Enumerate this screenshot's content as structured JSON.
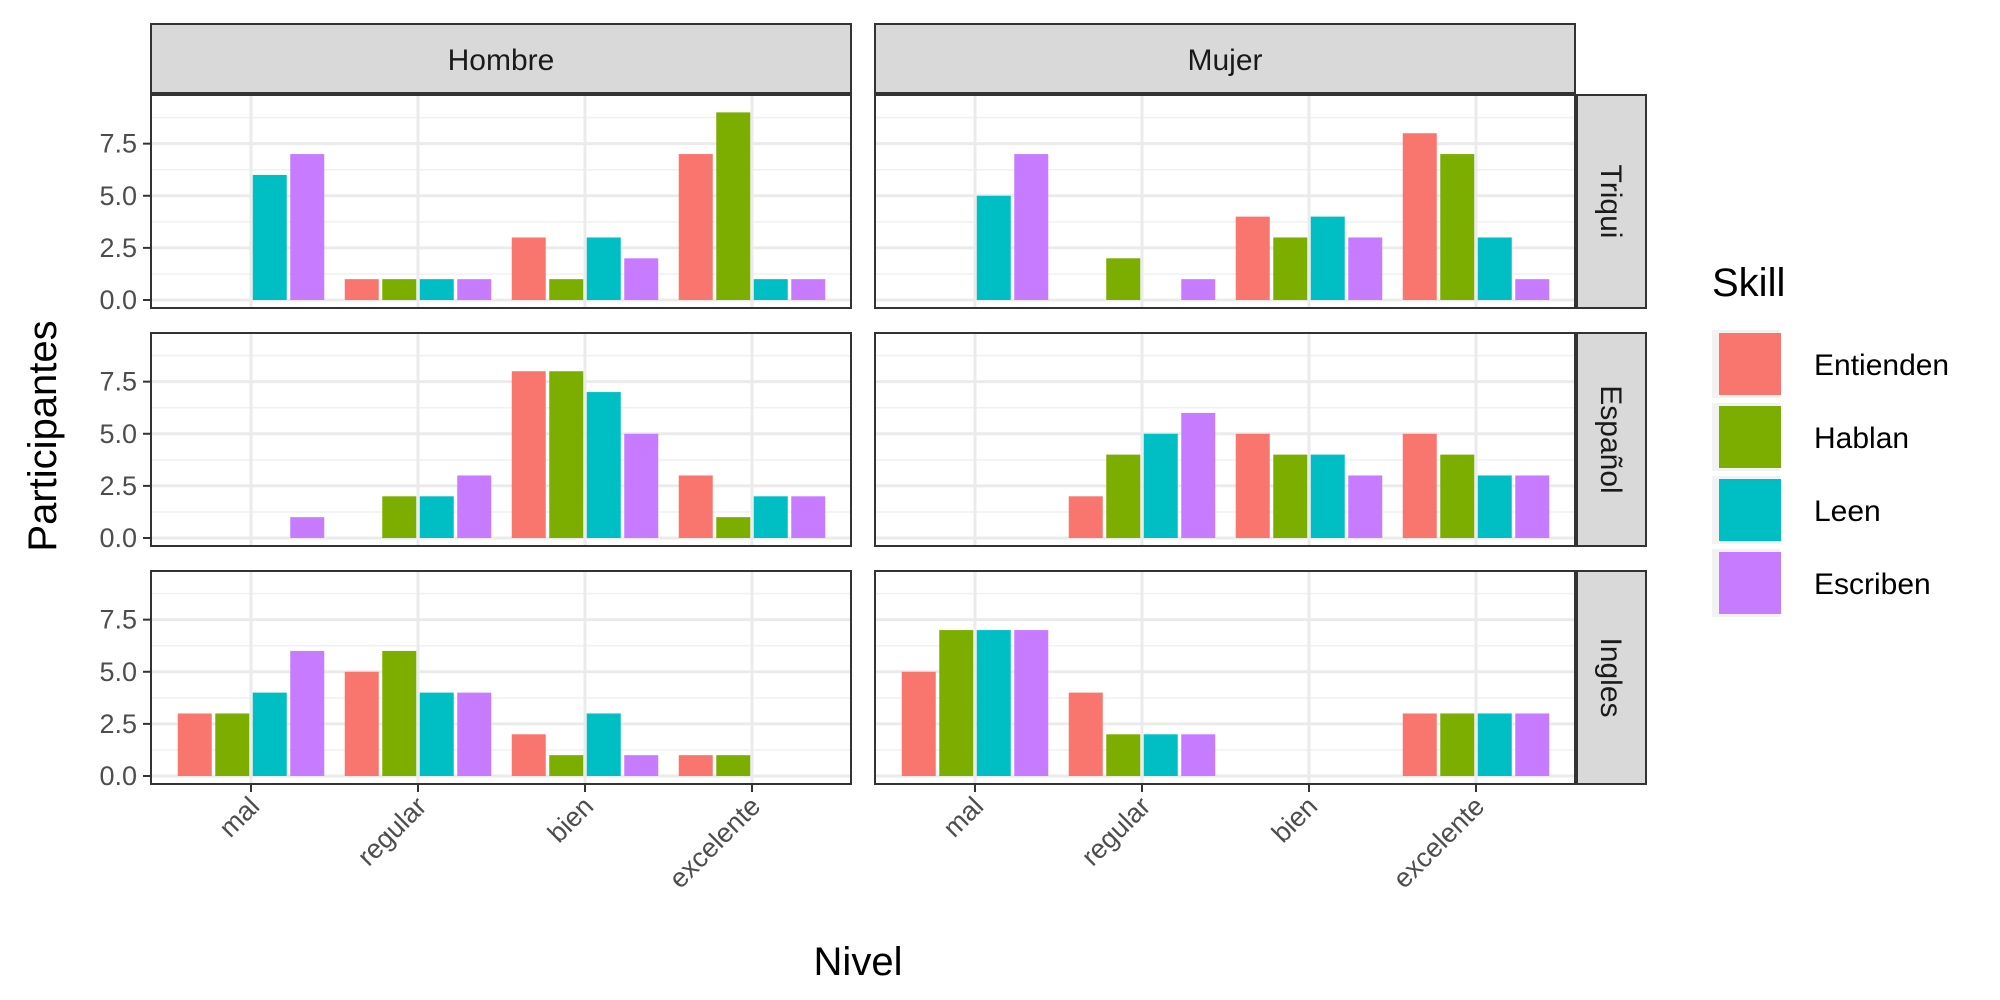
{
  "chart_data": {
    "type": "bar",
    "xlabel": "Nivel",
    "ylabel": "Participantes",
    "categories": [
      "mal",
      "regular",
      "bien",
      "excelente"
    ],
    "yticks": [
      "0.0",
      "2.5",
      "5.0",
      "7.5"
    ],
    "ylim": [
      0,
      9.45
    ],
    "grid": true,
    "legend": {
      "title": "Skill",
      "placement": "right",
      "entries": [
        "Entienden",
        "Hablan",
        "Leen",
        "Escriben"
      ]
    },
    "colors": {
      "Entienden": "#F8766D",
      "Hablan": "#7CAE00",
      "Leen": "#00BFC4",
      "Escriben": "#C77CFF"
    },
    "facet_columns": [
      "Hombre",
      "Mujer"
    ],
    "facet_rows": [
      "Triqui",
      "Español",
      "Ingles"
    ],
    "panels": [
      {
        "column": "Hombre",
        "row": "Triqui",
        "series": [
          {
            "name": "Entienden",
            "values": [
              0,
              1,
              3,
              7
            ]
          },
          {
            "name": "Hablan",
            "values": [
              0,
              1,
              1,
              9
            ]
          },
          {
            "name": "Leen",
            "values": [
              6,
              1,
              3,
              1
            ]
          },
          {
            "name": "Escriben",
            "values": [
              7,
              1,
              2,
              1
            ]
          }
        ]
      },
      {
        "column": "Mujer",
        "row": "Triqui",
        "series": [
          {
            "name": "Entienden",
            "values": [
              0,
              0,
              4,
              8
            ]
          },
          {
            "name": "Hablan",
            "values": [
              0,
              2,
              3,
              7
            ]
          },
          {
            "name": "Leen",
            "values": [
              5,
              0,
              4,
              3
            ]
          },
          {
            "name": "Escriben",
            "values": [
              7,
              1,
              3,
              1
            ]
          }
        ]
      },
      {
        "column": "Hombre",
        "row": "Español",
        "series": [
          {
            "name": "Entienden",
            "values": [
              0,
              0,
              8,
              3
            ]
          },
          {
            "name": "Hablan",
            "values": [
              0,
              2,
              8,
              1
            ]
          },
          {
            "name": "Leen",
            "values": [
              0,
              2,
              7,
              2
            ]
          },
          {
            "name": "Escriben",
            "values": [
              1,
              3,
              5,
              2
            ]
          }
        ]
      },
      {
        "column": "Mujer",
        "row": "Español",
        "series": [
          {
            "name": "Entienden",
            "values": [
              0,
              2,
              5,
              5
            ]
          },
          {
            "name": "Hablan",
            "values": [
              0,
              4,
              4,
              4
            ]
          },
          {
            "name": "Leen",
            "values": [
              0,
              5,
              4,
              3
            ]
          },
          {
            "name": "Escriben",
            "values": [
              0,
              6,
              3,
              3
            ]
          }
        ]
      },
      {
        "column": "Hombre",
        "row": "Ingles",
        "series": [
          {
            "name": "Entienden",
            "values": [
              3,
              5,
              2,
              1
            ]
          },
          {
            "name": "Hablan",
            "values": [
              3,
              6,
              1,
              1
            ]
          },
          {
            "name": "Leen",
            "values": [
              4,
              4,
              3,
              0
            ]
          },
          {
            "name": "Escriben",
            "values": [
              6,
              4,
              1,
              0
            ]
          }
        ]
      },
      {
        "column": "Mujer",
        "row": "Ingles",
        "series": [
          {
            "name": "Entienden",
            "values": [
              5,
              4,
              0,
              3
            ]
          },
          {
            "name": "Hablan",
            "values": [
              7,
              2,
              0,
              3
            ]
          },
          {
            "name": "Leen",
            "values": [
              7,
              2,
              0,
              3
            ]
          },
          {
            "name": "Escriben",
            "values": [
              7,
              2,
              0,
              3
            ]
          }
        ]
      }
    ]
  }
}
